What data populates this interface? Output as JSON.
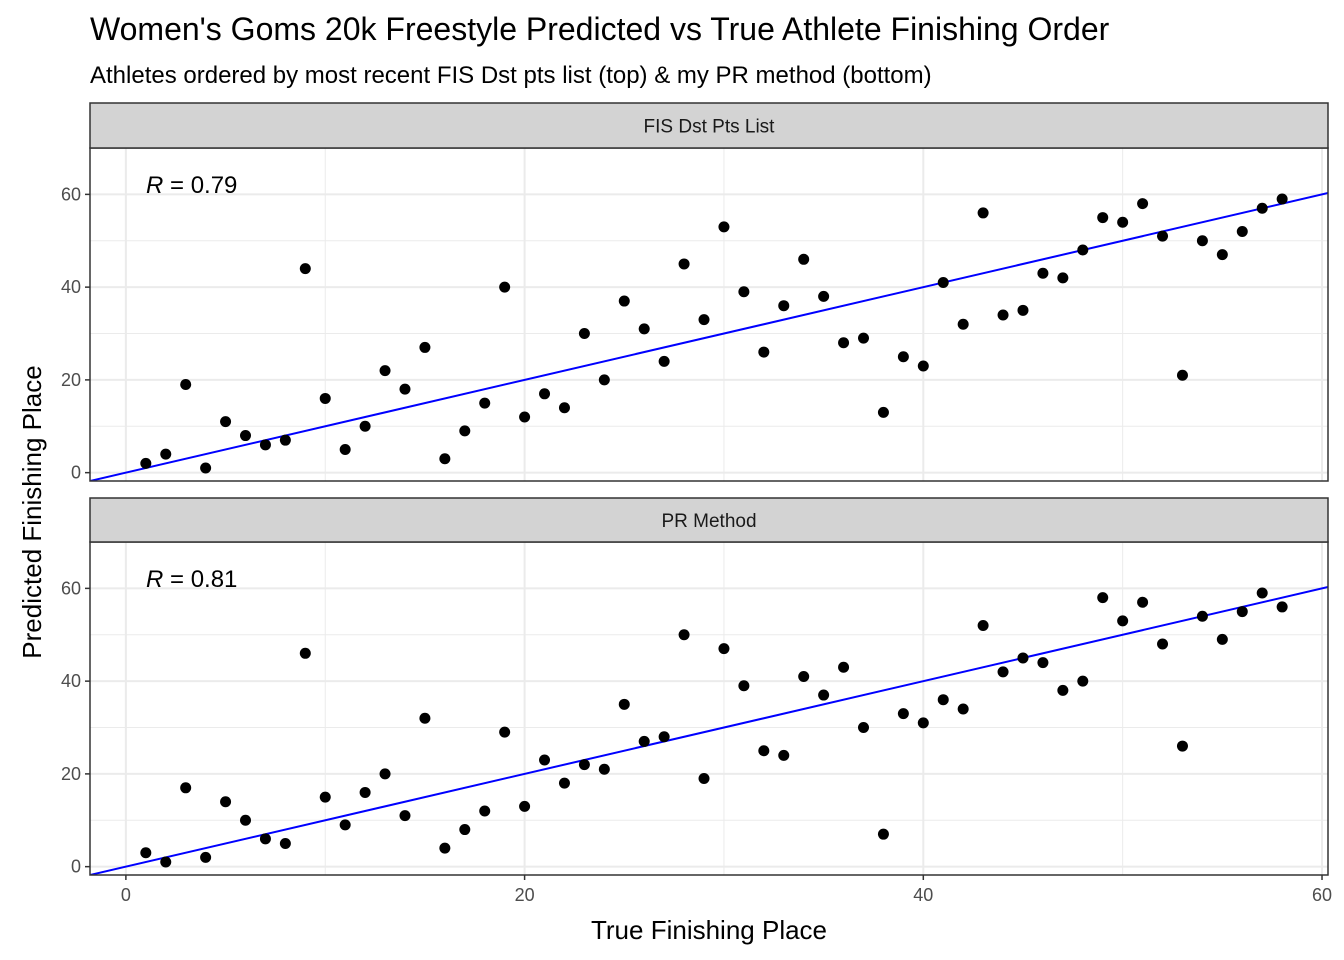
{
  "title": "Women's Goms 20k Freestyle Predicted vs True Athlete Finishing Order",
  "subtitle": "Athletes ordered by most recent FIS Dst pts list (top) & my PR method (bottom)",
  "colors": {
    "line": "#0000ff",
    "point": "#000000",
    "strip": "#d3d3d3",
    "grid": "#ebebeb"
  },
  "chart_data": {
    "type": "scatter",
    "title": "Women's Goms 20k Freestyle Predicted vs True Athlete Finishing Order",
    "subtitle": "Athletes ordered by most recent FIS Dst pts list (top) & my PR method (bottom)",
    "xlabel": "True Finishing Place",
    "ylabel": "Predicted Finishing Place",
    "xlim": [
      -1.8,
      60.3
    ],
    "ylim": [
      -1.8,
      70
    ],
    "x_ticks": [
      0,
      20,
      40,
      60
    ],
    "y_ticks": [
      0,
      20,
      40,
      60
    ],
    "grid": true,
    "x": [
      1,
      2,
      3,
      4,
      5,
      6,
      7,
      8,
      9,
      10,
      11,
      12,
      13,
      14,
      15,
      16,
      17,
      18,
      19,
      20,
      21,
      22,
      23,
      24,
      25,
      26,
      27,
      28,
      29,
      30,
      31,
      32,
      33,
      34,
      35,
      36,
      37,
      38,
      39,
      40,
      41,
      42,
      43,
      44,
      45,
      46,
      47,
      48,
      49,
      50,
      51,
      52,
      53,
      54,
      55,
      56,
      57,
      58
    ],
    "panels": [
      {
        "name": "FIS Dst Pts List",
        "annotation_label": "R",
        "annotation_value": " = 0.79",
        "fit": {
          "intercept": 0,
          "slope": 1
        },
        "y": [
          2,
          4,
          19,
          1,
          11,
          8,
          6,
          7,
          44,
          16,
          5,
          10,
          22,
          18,
          27,
          3,
          9,
          15,
          40,
          12,
          17,
          14,
          30,
          20,
          37,
          31,
          24,
          45,
          33,
          53,
          39,
          26,
          36,
          46,
          38,
          28,
          29,
          13,
          25,
          23,
          41,
          32,
          56,
          34,
          35,
          43,
          42,
          48,
          55,
          54,
          58,
          51,
          21,
          50,
          47,
          52,
          57,
          59
        ]
      },
      {
        "name": "PR Method",
        "annotation_label": "R",
        "annotation_value": " = 0.81",
        "fit": {
          "intercept": 0,
          "slope": 1
        },
        "y": [
          3,
          1,
          17,
          2,
          14,
          10,
          6,
          5,
          46,
          15,
          9,
          16,
          20,
          11,
          32,
          4,
          8,
          12,
          29,
          13,
          23,
          18,
          22,
          21,
          35,
          27,
          28,
          50,
          19,
          47,
          39,
          25,
          24,
          41,
          37,
          43,
          30,
          7,
          33,
          31,
          36,
          34,
          52,
          42,
          45,
          44,
          38,
          40,
          58,
          53,
          57,
          48,
          26,
          54,
          49,
          55,
          59,
          56
        ]
      }
    ]
  }
}
